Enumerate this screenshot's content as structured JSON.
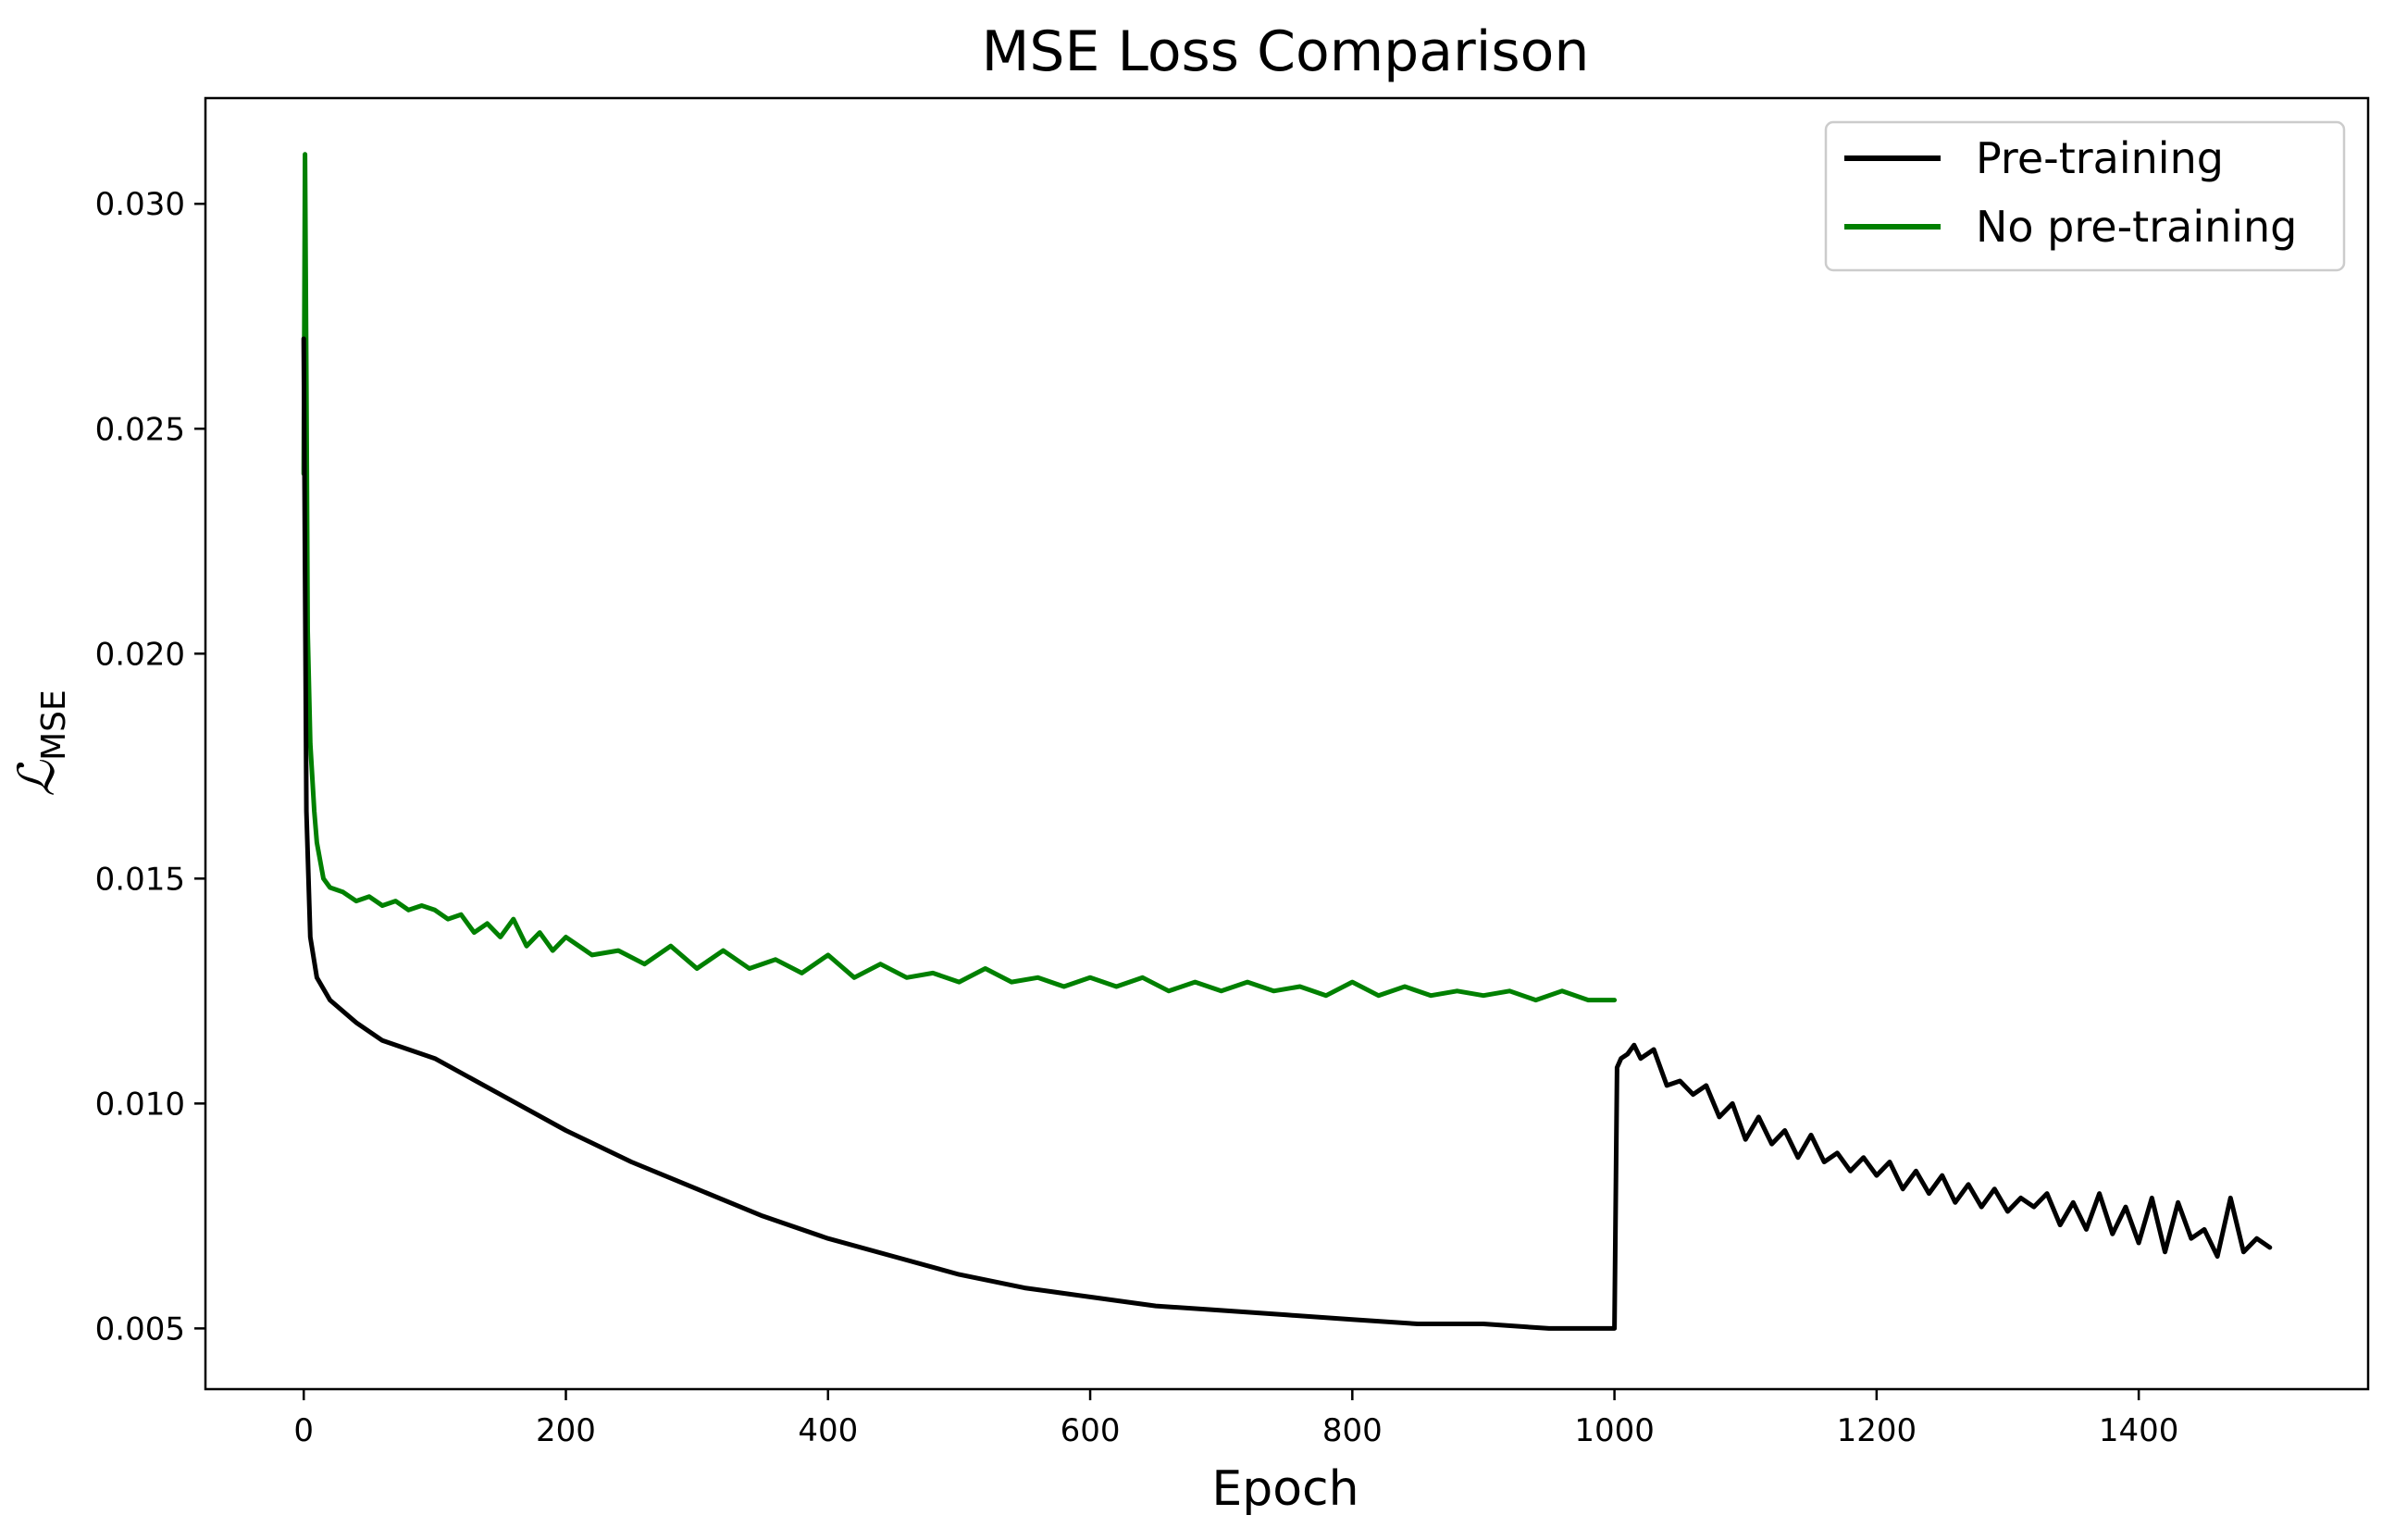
{
  "chart_data": {
    "type": "line",
    "title": "MSE Loss Comparison",
    "xlabel": "Epoch",
    "ylabel_main": "ℒ",
    "ylabel_sub": "MSE",
    "xlim": [
      -75,
      1575
    ],
    "ylim": [
      0.00365,
      0.03235
    ],
    "xticks": [
      0,
      200,
      400,
      600,
      800,
      1000,
      1200,
      1400
    ],
    "xtick_labels": [
      "0",
      "200",
      "400",
      "600",
      "800",
      "1000",
      "1200",
      "1400"
    ],
    "yticks": [
      0.005,
      0.01,
      0.015,
      0.02,
      0.025,
      0.03
    ],
    "ytick_labels": [
      "0.005",
      "0.010",
      "0.015",
      "0.020",
      "0.025",
      "0.030"
    ],
    "grid": false,
    "legend_position": "top-right",
    "series": [
      {
        "name": "Pre-training",
        "color": "#000000",
        "x": [
          0,
          2,
          5,
          10,
          20,
          40,
          60,
          80,
          100,
          150,
          200,
          250,
          300,
          350,
          400,
          450,
          500,
          550,
          600,
          650,
          700,
          750,
          800,
          850,
          900,
          950,
          999,
          1000,
          1002,
          1005,
          1010,
          1015,
          1020,
          1030,
          1040,
          1050,
          1060,
          1070,
          1080,
          1090,
          1100,
          1110,
          1120,
          1130,
          1140,
          1150,
          1160,
          1170,
          1180,
          1190,
          1200,
          1210,
          1220,
          1230,
          1240,
          1250,
          1260,
          1270,
          1280,
          1290,
          1300,
          1310,
          1320,
          1330,
          1340,
          1350,
          1360,
          1370,
          1380,
          1390,
          1400,
          1410,
          1420,
          1430,
          1440,
          1450,
          1460,
          1470,
          1480,
          1490,
          1500
        ],
        "y": [
          0.027,
          0.0165,
          0.0137,
          0.0128,
          0.0123,
          0.0118,
          0.0114,
          0.0112,
          0.011,
          0.0102,
          0.0094,
          0.0087,
          0.0081,
          0.0075,
          0.007,
          0.0066,
          0.0062,
          0.0059,
          0.0057,
          0.0055,
          0.0054,
          0.0053,
          0.0052,
          0.0051,
          0.0051,
          0.005,
          0.005,
          0.005,
          0.0108,
          0.011,
          0.0111,
          0.0113,
          0.011,
          0.0112,
          0.0104,
          0.0105,
          0.0102,
          0.0104,
          0.0097,
          0.01,
          0.0092,
          0.0097,
          0.0091,
          0.0094,
          0.0088,
          0.0093,
          0.0087,
          0.0089,
          0.0085,
          0.0088,
          0.0084,
          0.0087,
          0.0081,
          0.0085,
          0.008,
          0.0084,
          0.0078,
          0.0082,
          0.0077,
          0.0081,
          0.0076,
          0.0079,
          0.0077,
          0.008,
          0.0073,
          0.0078,
          0.0072,
          0.008,
          0.0071,
          0.0077,
          0.0069,
          0.0079,
          0.0067,
          0.0078,
          0.007,
          0.0072,
          0.0066,
          0.0079,
          0.0067,
          0.007,
          0.0068
        ]
      },
      {
        "name": "No pre-training",
        "color": "#008000",
        "x": [
          0,
          1,
          2,
          3,
          5,
          8,
          10,
          15,
          20,
          30,
          40,
          50,
          60,
          70,
          80,
          90,
          100,
          110,
          120,
          130,
          140,
          150,
          160,
          170,
          180,
          190,
          200,
          220,
          240,
          260,
          280,
          300,
          320,
          340,
          360,
          380,
          400,
          420,
          440,
          460,
          480,
          500,
          520,
          540,
          560,
          580,
          600,
          620,
          640,
          660,
          680,
          700,
          720,
          740,
          760,
          780,
          800,
          820,
          840,
          860,
          880,
          900,
          920,
          940,
          960,
          980,
          1000
        ],
        "y": [
          0.024,
          0.0311,
          0.026,
          0.0205,
          0.018,
          0.0165,
          0.0158,
          0.015,
          0.0148,
          0.0147,
          0.0145,
          0.0146,
          0.0144,
          0.0145,
          0.0143,
          0.0144,
          0.0143,
          0.0141,
          0.0142,
          0.0138,
          0.014,
          0.0137,
          0.0141,
          0.0135,
          0.0138,
          0.0134,
          0.0137,
          0.0133,
          0.0134,
          0.0131,
          0.0135,
          0.013,
          0.0134,
          0.013,
          0.0132,
          0.0129,
          0.0133,
          0.0128,
          0.0131,
          0.0128,
          0.0129,
          0.0127,
          0.013,
          0.0127,
          0.0128,
          0.0126,
          0.0128,
          0.0126,
          0.0128,
          0.0125,
          0.0127,
          0.0125,
          0.0127,
          0.0125,
          0.0126,
          0.0124,
          0.0127,
          0.0124,
          0.0126,
          0.0124,
          0.0125,
          0.0124,
          0.0125,
          0.0123,
          0.0125,
          0.0123,
          0.0123
        ]
      }
    ]
  }
}
